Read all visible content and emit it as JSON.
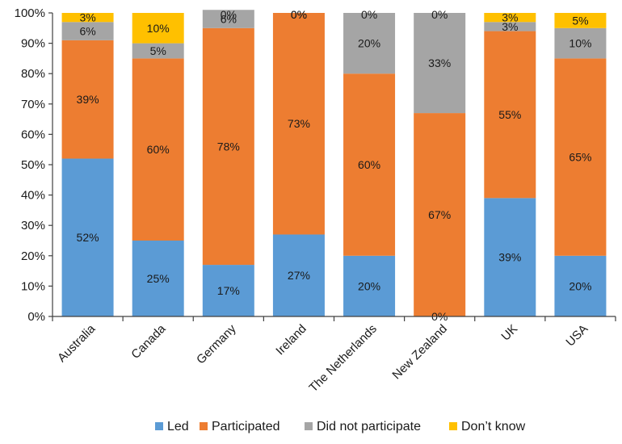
{
  "chart_data": {
    "type": "bar",
    "stacked": true,
    "categories": [
      "Australia",
      "Canada",
      "Germany",
      "Ireland",
      "The Netherlands",
      "New Zealand",
      "UK",
      "USA"
    ],
    "series": [
      {
        "name": "Led",
        "color": "#5b9bd5",
        "values": [
          52,
          25,
          17,
          27,
          20,
          0,
          39,
          20
        ]
      },
      {
        "name": "Participated",
        "color": "#ed7d31",
        "values": [
          39,
          60,
          78,
          73,
          60,
          67,
          55,
          65
        ]
      },
      {
        "name": "Did not participate",
        "color": "#a5a5a5",
        "values": [
          6,
          5,
          6,
          0,
          20,
          33,
          3,
          10
        ]
      },
      {
        "name": "Don’t know",
        "color": "#ffc000",
        "values": [
          3,
          10,
          0,
          0,
          0,
          0,
          3,
          5
        ]
      }
    ],
    "data_labels": [
      [
        "52%",
        "39%",
        "6%",
        "3%"
      ],
      [
        "25%",
        "60%",
        "5%",
        "10%"
      ],
      [
        "17%",
        "78%",
        "6%",
        "0%"
      ],
      [
        "27%",
        "73%",
        "0%",
        "0%"
      ],
      [
        "20%",
        "60%",
        "20%",
        "0%"
      ],
      [
        "0%",
        "67%",
        "33%",
        "0%"
      ],
      [
        "39%",
        "55%",
        "3%",
        "3%"
      ],
      [
        "20%",
        "65%",
        "10%",
        "5%"
      ]
    ],
    "y_ticks": [
      "0%",
      "10%",
      "20%",
      "30%",
      "40%",
      "50%",
      "60%",
      "70%",
      "80%",
      "90%",
      "100%"
    ],
    "ylim": [
      0,
      100
    ],
    "title": "",
    "xlabel": "",
    "ylabel": "",
    "grid": false,
    "legend_position": "bottom"
  }
}
